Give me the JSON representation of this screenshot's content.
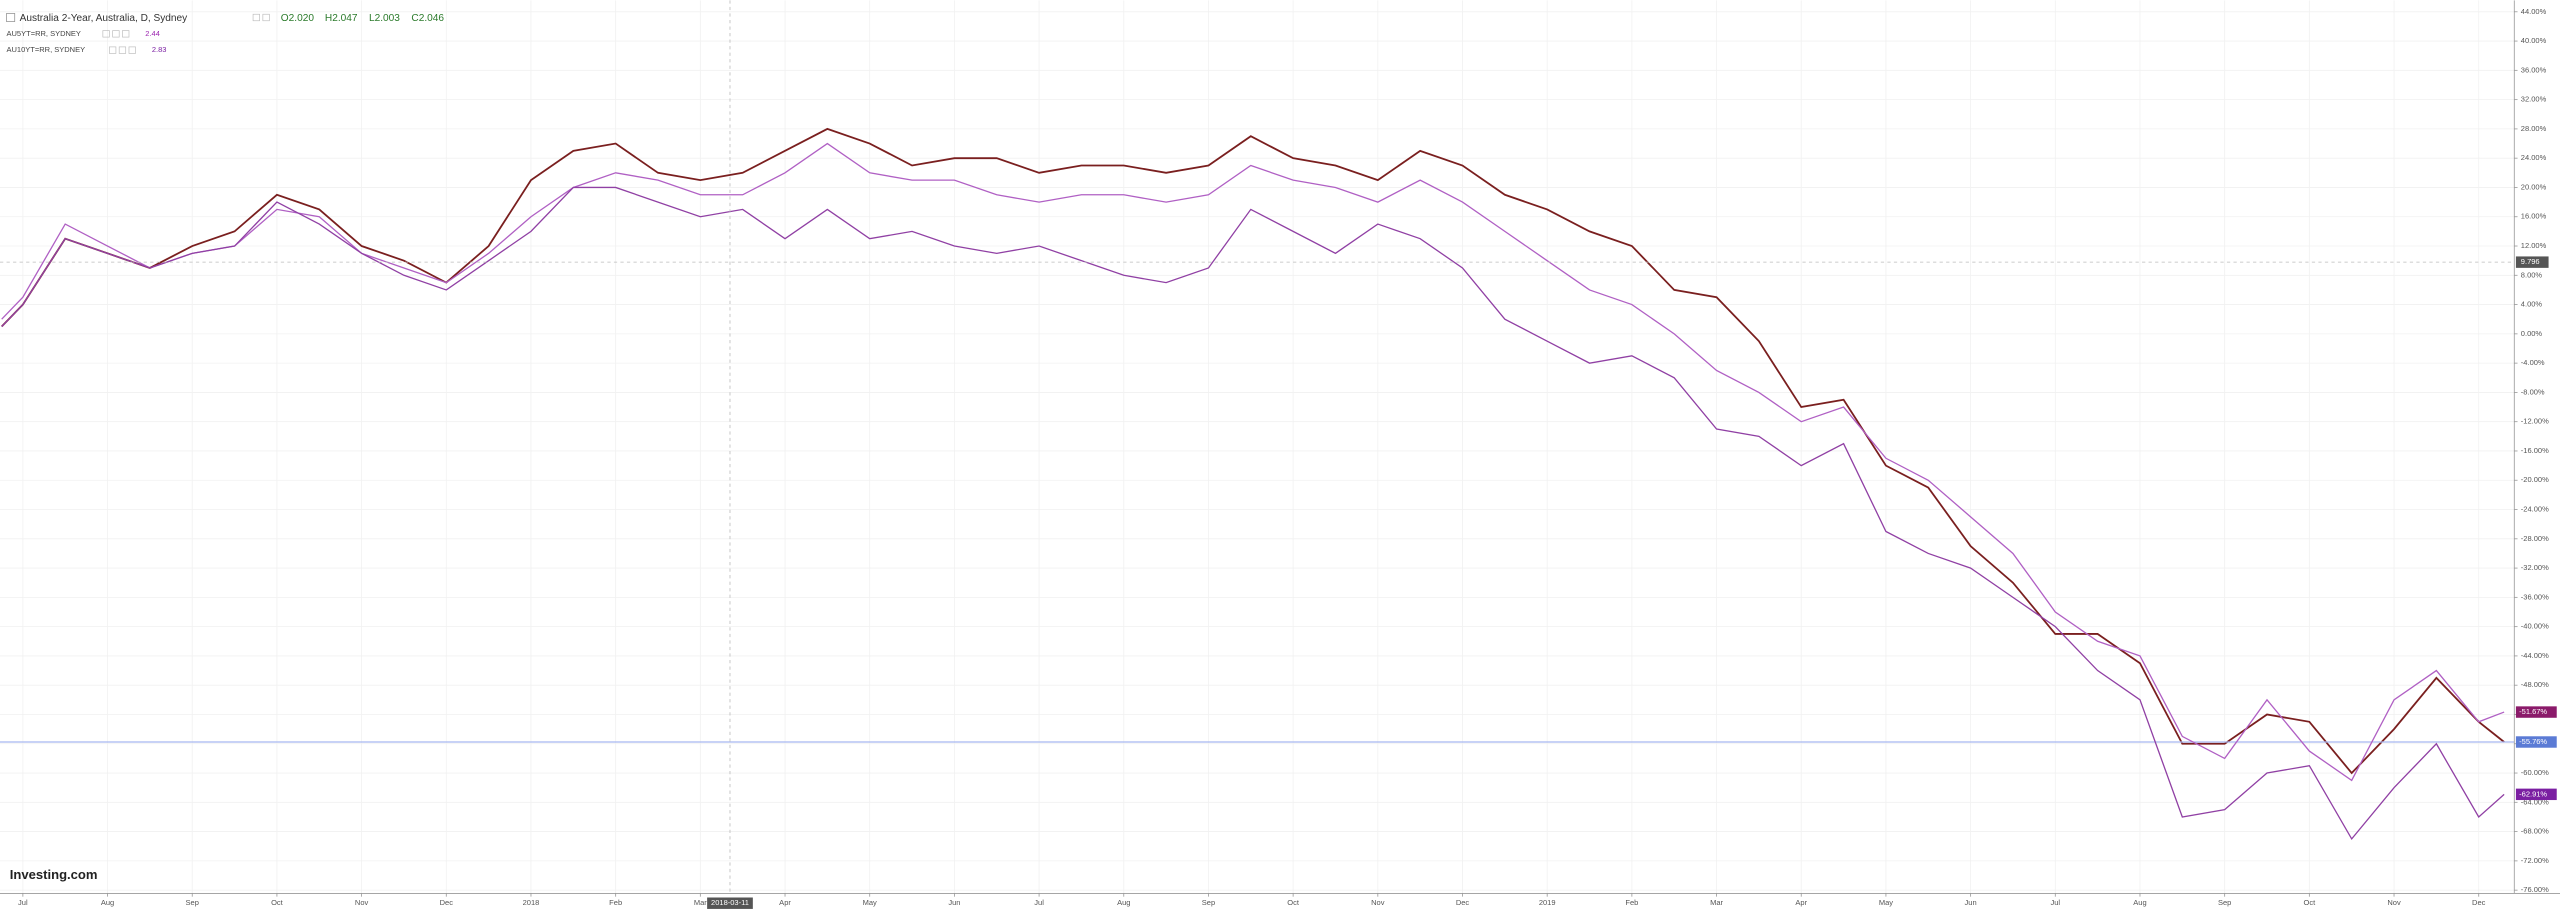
{
  "chart_data": {
    "type": "line",
    "title": "Australia 2-Year, Australia, D, Sydney",
    "ohlc_labels": [
      "O2.020",
      "H2.047",
      "L2.003",
      "C2.046"
    ],
    "logo": "Investing.com",
    "x": [
      -0.25,
      0,
      0.5,
      1,
      1.5,
      2,
      2.5,
      3,
      3.5,
      4,
      4.5,
      5,
      5.5,
      6,
      6.5,
      7,
      7.5,
      8,
      8.5,
      9,
      9.5,
      10,
      10.5,
      11,
      11.5,
      12,
      12.5,
      13,
      13.5,
      14,
      14.5,
      15,
      15.5,
      16,
      16.5,
      17,
      17.5,
      18,
      18.5,
      19,
      19.5,
      20,
      20.5,
      21,
      21.5,
      22,
      22.5,
      23,
      23.5,
      24,
      24.5,
      25,
      25.5,
      26,
      26.5,
      27,
      27.5,
      28,
      28.5,
      29,
      29.3
    ],
    "series": [
      {
        "name": "Australia 2-Year",
        "color": "#7a1f1f",
        "last_label": "-55.76%",
        "last_label_color": "#5b7bd5",
        "values": [
          1,
          4,
          13,
          11,
          9,
          12,
          14,
          19,
          17,
          12,
          10,
          7,
          12,
          21,
          25,
          26,
          22,
          21,
          22,
          25,
          28,
          26,
          23,
          24,
          24,
          22,
          23,
          23,
          22,
          23,
          27,
          24,
          23,
          21,
          25,
          23,
          19,
          17,
          14,
          12,
          6,
          5,
          -1,
          -10,
          -9,
          -18,
          -21,
          -29,
          -34,
          -41,
          -41,
          -45,
          -56,
          -56,
          -52,
          -53,
          -60,
          -54,
          -47,
          -53,
          -55.76
        ]
      },
      {
        "name": "AU5YT=RR, SYDNEY",
        "color": "#b060c4",
        "legend_value": "2.44",
        "last_label": "-51.67%",
        "last_label_color": "#8b1a6a",
        "values": [
          2,
          5,
          15,
          12,
          9,
          11,
          12,
          17,
          16,
          11,
          9,
          7,
          11,
          16,
          20,
          22,
          21,
          19,
          19,
          22,
          26,
          22,
          21,
          21,
          19,
          18,
          19,
          19,
          18,
          19,
          23,
          21,
          20,
          18,
          21,
          18,
          14,
          10,
          6,
          4,
          0,
          -5,
          -8,
          -12,
          -10,
          -17,
          -20,
          -25,
          -30,
          -38,
          -42,
          -44,
          -55,
          -58,
          -50,
          -57,
          -61,
          -50,
          -46,
          -53,
          -51.67
        ]
      },
      {
        "name": "AU10YT=RR, SYDNEY",
        "color": "#9040a4",
        "legend_value": "2.83",
        "last_label": "-62.91%",
        "last_label_color": "#7b1fa2",
        "values": [
          1,
          4,
          13,
          11,
          9,
          11,
          12,
          18,
          15,
          11,
          8,
          6,
          10,
          14,
          20,
          20,
          18,
          16,
          17,
          13,
          17,
          13,
          14,
          12,
          11,
          12,
          10,
          8,
          7,
          9,
          17,
          14,
          11,
          15,
          13,
          9,
          2,
          -1,
          -4,
          -3,
          -6,
          -13,
          -14,
          -18,
          -15,
          -27,
          -30,
          -32,
          -36,
          -40,
          -46,
          -50,
          -66,
          -65,
          -60,
          -59,
          -69,
          -62,
          -56,
          -66,
          -62.91
        ]
      }
    ],
    "xlim": [
      -0.27,
      29.42
    ],
    "xticks": [
      {
        "value": 0,
        "label": "Jul"
      },
      {
        "value": 1,
        "label": "Aug"
      },
      {
        "value": 2,
        "label": "Sep"
      },
      {
        "value": 3,
        "label": "Oct"
      },
      {
        "value": 4,
        "label": "Nov"
      },
      {
        "value": 5,
        "label": "Dec"
      },
      {
        "value": 6,
        "label": "2018"
      },
      {
        "value": 7,
        "label": "Feb"
      },
      {
        "value": 8,
        "label": "Mar"
      },
      {
        "value": 9,
        "label": "Apr"
      },
      {
        "value": 10,
        "label": "May"
      },
      {
        "value": 11,
        "label": "Jun"
      },
      {
        "value": 12,
        "label": "Jul"
      },
      {
        "value": 13,
        "label": "Aug"
      },
      {
        "value": 14,
        "label": "Sep"
      },
      {
        "value": 15,
        "label": "Oct"
      },
      {
        "value": 16,
        "label": "Nov"
      },
      {
        "value": 17,
        "label": "Dec"
      },
      {
        "value": 18,
        "label": "2019"
      },
      {
        "value": 19,
        "label": "Feb"
      },
      {
        "value": 20,
        "label": "Mar"
      },
      {
        "value": 21,
        "label": "Apr"
      },
      {
        "value": 22,
        "label": "May"
      },
      {
        "value": 23,
        "label": "Jun"
      },
      {
        "value": 24,
        "label": "Jul"
      },
      {
        "value": 25,
        "label": "Aug"
      },
      {
        "value": 26,
        "label": "Sep"
      },
      {
        "value": 27,
        "label": "Oct"
      },
      {
        "value": 28,
        "label": "Nov"
      },
      {
        "value": 29,
        "label": "Dec"
      }
    ],
    "ylim": [
      -76,
      44
    ],
    "yticks": [
      {
        "value": 44,
        "label": "44.00%"
      },
      {
        "value": 40,
        "label": "40.00%"
      },
      {
        "value": 36,
        "label": "36.00%"
      },
      {
        "value": 32,
        "label": "32.00%"
      },
      {
        "value": 28,
        "label": "28.00%"
      },
      {
        "value": 24,
        "label": "24.00%"
      },
      {
        "value": 20,
        "label": "20.00%"
      },
      {
        "value": 16,
        "label": "16.00%"
      },
      {
        "value": 12,
        "label": "12.00%"
      },
      {
        "value": 8,
        "label": "8.00%"
      },
      {
        "value": 4,
        "label": "4.00%"
      },
      {
        "value": 0,
        "label": "0.00%"
      },
      {
        "value": -4,
        "label": "-4.00%"
      },
      {
        "value": -8,
        "label": "-8.00%"
      },
      {
        "value": -12,
        "label": "-12.00%"
      },
      {
        "value": -16,
        "label": "-16.00%"
      },
      {
        "value": -20,
        "label": "-20.00%"
      },
      {
        "value": -24,
        "label": "-24.00%"
      },
      {
        "value": -28,
        "label": "-28.00%"
      },
      {
        "value": -32,
        "label": "-32.00%"
      },
      {
        "value": -36,
        "label": "-36.00%"
      },
      {
        "value": -40,
        "label": "-40.00%"
      },
      {
        "value": -44,
        "label": "-44.00%"
      },
      {
        "value": -48,
        "label": "-48.00%"
      },
      {
        "value": -52,
        "label": "-52.00%"
      },
      {
        "value": -56,
        "label": "-56.00%"
      },
      {
        "value": -60,
        "label": "-60.00%"
      },
      {
        "value": -64,
        "label": "-64.00%"
      },
      {
        "value": -68,
        "label": "-68.00%"
      },
      {
        "value": -72,
        "label": "-72.00%"
      },
      {
        "value": -76,
        "label": "-76.00%"
      }
    ],
    "grid": true,
    "crosshair": {
      "x": 8.35,
      "x_label": "2018-03-11",
      "y": 9.796,
      "y_label": "9.796"
    }
  }
}
